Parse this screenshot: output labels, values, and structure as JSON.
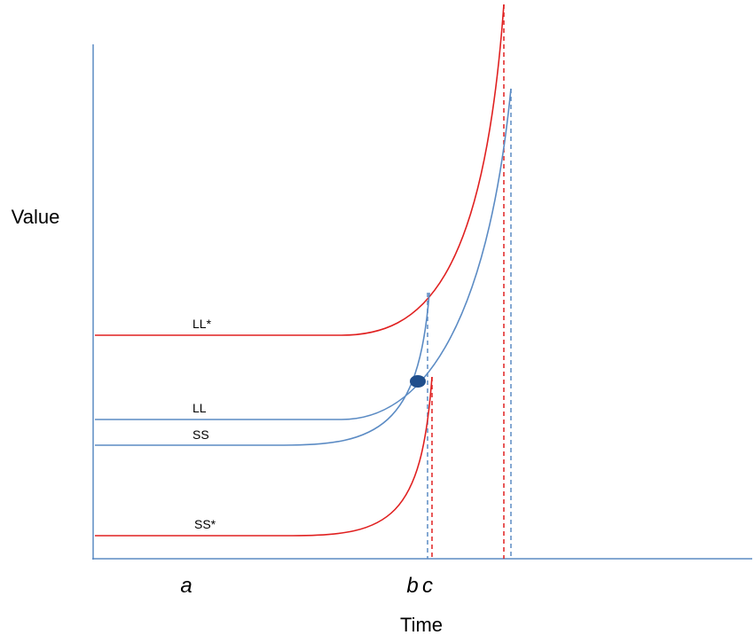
{
  "axes": {
    "y_title": "Value",
    "x_title": "Time"
  },
  "time_points": [
    "a",
    "b",
    "c"
  ],
  "curves": [
    {
      "label": "LL*"
    },
    {
      "label": "LL"
    },
    {
      "label": "SS"
    },
    {
      "label": "SS*"
    }
  ]
}
